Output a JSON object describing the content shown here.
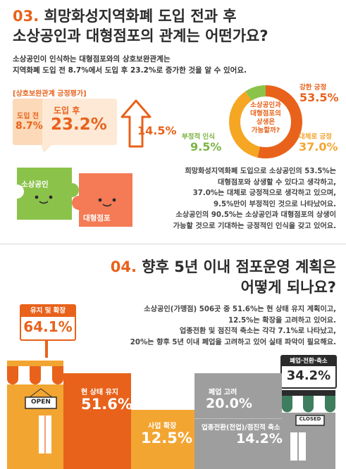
{
  "section3": {
    "title_num": "03.",
    "title_line1": "희망화성지역화폐 도입 전과 후",
    "title_line2": "소상공인과 대형점포의 관계는 어떤가요?",
    "intro_line1_a": "소상공인이 인식하는 대형점포와의 상호보완관계는",
    "intro_line2_a": "지역화폐 도입 전 ",
    "intro_line2_b": "8.7%",
    "intro_line2_c": "에서 도입 후 ",
    "intro_line2_d": "23.2%",
    "intro_line2_e": "로 증가한 것을 알 수 있어요.",
    "box_label": "[상호보완관계 긍정평가]",
    "before_label": "도입 전",
    "before_value": "8.7%",
    "after_label": "도입 후",
    "after_value": "23.2%",
    "increase_value": "14.5%",
    "donut_center": [
      "소상공인과",
      "대형점포의",
      "상생은",
      "가능할까?"
    ],
    "donut_items": [
      {
        "label": "강한 긍정",
        "value": "53.5%",
        "pct": 53.5,
        "color": "#e8621b"
      },
      {
        "label": "대체로 긍정",
        "value": "37.0%",
        "pct": 37.0,
        "color": "#f5a623"
      },
      {
        "label": "부정적 인식",
        "value": "9.5%",
        "pct": 9.5,
        "color": "#8bc34a"
      }
    ],
    "puzzle_left": "소상공인",
    "puzzle_right": "대형점포",
    "paragraph": [
      "희망화성지역화폐 도입으로 소상공인의 53.5%는",
      "대형점포와 상생할 수 있다고 생각하고,",
      "37.0%는 대체로 긍정적으로 생각하고 있으며,",
      "9.5%만이 부정적인 것으로 나타났어요.",
      "소상공인의 90.5%는 소상공인과 대형점포의 상생이",
      "가능할 것으로 기대하는 긍정적인 인식을 갖고 있어요."
    ]
  },
  "section4": {
    "title_num": "04.",
    "title_line1": "향후 5년 이내 점포운영 계획은",
    "title_line2": "어떻게 되나요?",
    "sign_label": "유지 및 확장",
    "sign_value": "64.1%",
    "paragraph": [
      "소상공인(가맹점) 506곳 중 51.6%는 현 상태 유지 계획이고,",
      "12.5%는 확장을 고려하고 있어요.",
      "업종전환 및 점진적 축소는 각각 7.1%로 나타났고,",
      "20%는 향후 5년 이내 폐업을 고려하고 있어 실태 파악이 필요해요."
    ],
    "right_sign_label": "폐업·전환·축소",
    "right_sign_value": "34.2%",
    "open_label": "OPEN",
    "closed_label": "CLOSED",
    "bars": [
      {
        "label": "현 상태 유지",
        "value": "51.6%",
        "color": "#e8621b"
      },
      {
        "label": "사업 확장",
        "value": "12.5%",
        "color": "#f3a532"
      },
      {
        "label": "폐업 고려",
        "value": "20.0%",
        "color": "#9e9e9e"
      },
      {
        "label": "업종전환(전업)/점진적 축소",
        "value": "14.2%",
        "color": "#8a8a8a"
      }
    ]
  },
  "colors": {
    "accent": "#e8621b",
    "yellow": "#f3a532",
    "green": "#8bc34a",
    "gray": "#9e9e9e"
  }
}
